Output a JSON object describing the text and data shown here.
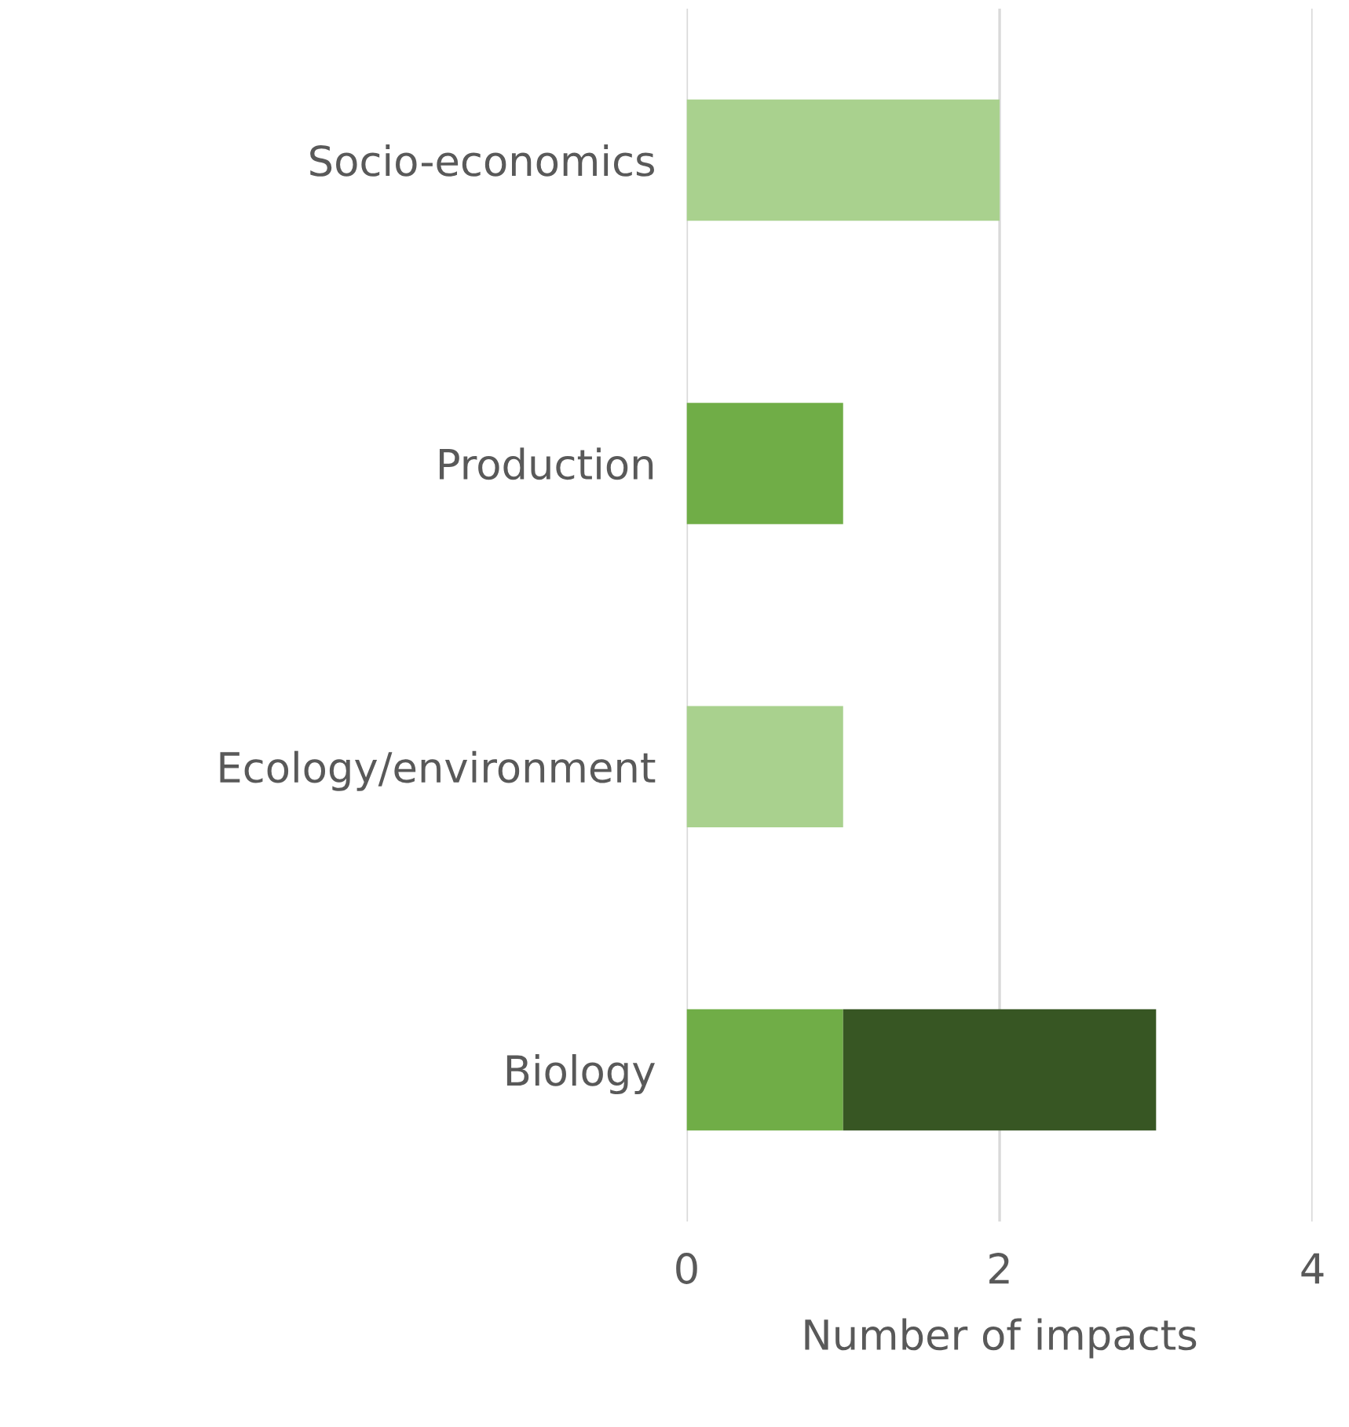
{
  "chart_data": {
    "type": "bar",
    "orientation": "horizontal",
    "stacked": true,
    "categories": [
      "Socio-economics",
      "Production",
      "Ecology/environment",
      "Biology"
    ],
    "series": [
      {
        "color": "#a9d18e",
        "values": [
          2,
          null,
          1,
          null
        ]
      },
      {
        "color": "#70ad47",
        "values": [
          null,
          1,
          null,
          1
        ]
      },
      {
        "color": "#375623",
        "values": [
          null,
          null,
          null,
          2
        ]
      }
    ],
    "xlabel": "Number of impacts",
    "xlim": [
      0,
      4
    ],
    "xticks": [
      0,
      2,
      4
    ],
    "grid": "x",
    "legend": false
  }
}
